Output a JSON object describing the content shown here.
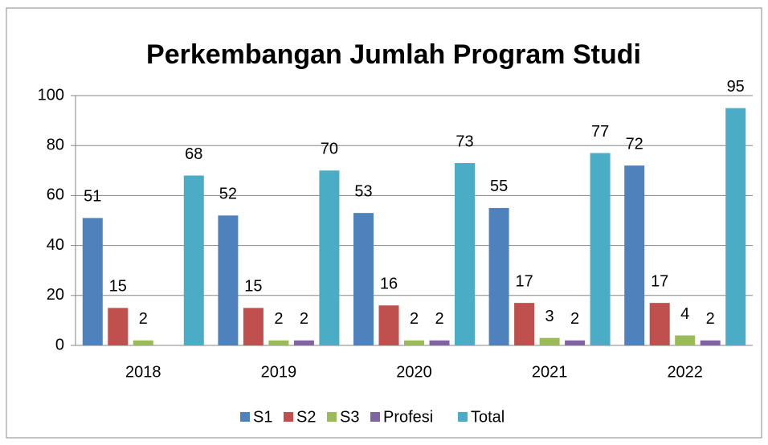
{
  "chart_data": {
    "type": "bar",
    "title": "Perkembangan Jumlah Program Studi",
    "categories": [
      "2018",
      "2019",
      "2020",
      "2021",
      "2022"
    ],
    "series": [
      {
        "name": "S1",
        "color": "#4f81bd",
        "values": [
          51,
          52,
          53,
          55,
          72
        ]
      },
      {
        "name": "S2",
        "color": "#c0504d",
        "values": [
          15,
          15,
          16,
          17,
          17
        ]
      },
      {
        "name": "S3",
        "color": "#9bbb59",
        "values": [
          2,
          2,
          2,
          3,
          4
        ]
      },
      {
        "name": "Profesi",
        "color": "#8064a2",
        "values": [
          null,
          2,
          2,
          2,
          2
        ]
      },
      {
        "name": "Total",
        "color": "#4bacc6",
        "values": [
          68,
          70,
          73,
          77,
          95
        ]
      }
    ],
    "ylim": [
      0,
      100
    ],
    "yticks": [
      0,
      20,
      40,
      60,
      80,
      100
    ],
    "grid": true,
    "legend": "bottom"
  }
}
